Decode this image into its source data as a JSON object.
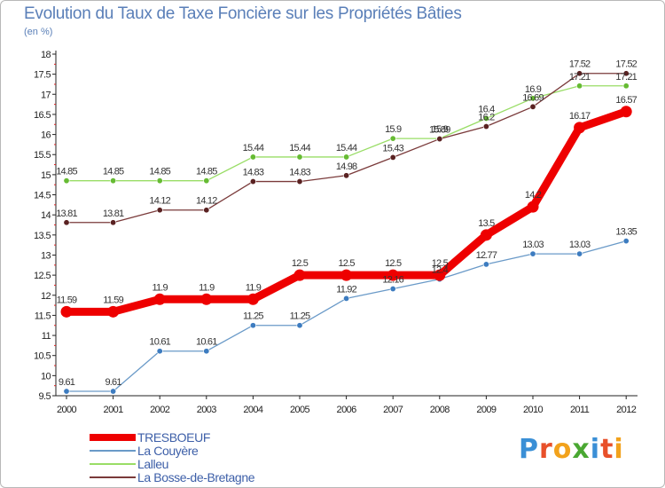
{
  "header": {
    "title": "Evolution du Taux de Taxe Foncière sur les Propriétés Bâties",
    "subtitle": "(en %)"
  },
  "brand": {
    "logo_letters": [
      "P",
      "r",
      "o",
      "x",
      "i",
      "t",
      "i"
    ],
    "logo_colors": [
      "#3a8fd6",
      "#e8502a",
      "#f2a21c",
      "#4aa832",
      "#3a8fd6",
      "#e8502a",
      "#f2a21c"
    ]
  },
  "chart_data": {
    "type": "line",
    "title": "Evolution du Taux de Taxe Foncière sur les Propriétés Bâties",
    "subtitle": "(en %)",
    "xlabel": "",
    "ylabel": "",
    "x": [
      "2000",
      "2001",
      "2002",
      "2003",
      "2004",
      "2005",
      "2006",
      "2007",
      "2008",
      "2009",
      "2010",
      "2011",
      "2012"
    ],
    "ylim": [
      9.5,
      18
    ],
    "yticks": [
      "9.5",
      "10",
      "10.5",
      "11",
      "11.5",
      "12",
      "12.5",
      "13",
      "13.5",
      "14",
      "14.5",
      "15",
      "15.5",
      "16",
      "16.5",
      "17",
      "17.5",
      "18"
    ],
    "grid": false,
    "legend": "bottom-left",
    "series": [
      {
        "name": "La Couyère",
        "color": "#6a9ac8",
        "marker_color": "#3d7cc0",
        "values": [
          9.61,
          9.61,
          10.61,
          10.61,
          11.25,
          11.25,
          11.92,
          12.16,
          12.4,
          12.77,
          13.03,
          13.03,
          13.35
        ],
        "labels": [
          "9.61",
          "9.61",
          "10.61",
          "10.61",
          "11.25",
          "11.25",
          "11.92",
          "12.16",
          "12.4",
          "12.77",
          "13.03",
          "13.03",
          "13.35"
        ]
      },
      {
        "name": "Lalleu",
        "color": "#99dd66",
        "marker_color": "#66bb33",
        "values": [
          14.85,
          14.85,
          14.85,
          14.85,
          15.44,
          15.44,
          15.44,
          15.9,
          15.9,
          16.4,
          16.9,
          17.21,
          17.21
        ],
        "labels": [
          "14.85",
          "14.85",
          "14.85",
          "14.85",
          "15.44",
          "15.44",
          "15.44",
          "15.9",
          "15.9",
          "16.4",
          "16.9",
          "17.21",
          "17.21"
        ]
      },
      {
        "name": "La Bosse-de-Bretagne",
        "color": "#7a3a3a",
        "marker_color": "#5a2222",
        "values": [
          13.81,
          13.81,
          14.12,
          14.12,
          14.83,
          14.83,
          14.98,
          15.43,
          15.89,
          16.2,
          16.69,
          17.52,
          17.52
        ],
        "labels": [
          "13.81",
          "13.81",
          "14.12",
          "14.12",
          "14.83",
          "14.83",
          "14.98",
          "15.43",
          "15.89",
          "16.2",
          "16.69",
          "17.52",
          "17.52"
        ]
      },
      {
        "name": "TRESBOEUF",
        "color": "#ee0000",
        "marker_color": "#ee0000",
        "values": [
          11.59,
          11.59,
          11.9,
          11.9,
          11.9,
          12.5,
          12.5,
          12.5,
          12.5,
          13.5,
          14.2,
          16.17,
          16.57
        ],
        "labels": [
          "11.59",
          "11.59",
          "11.9",
          "11.9",
          "11.9",
          "12.5",
          "12.5",
          "12.5",
          "12.5",
          "13.5",
          "14.2",
          "16.17",
          "16.57"
        ]
      }
    ],
    "legend_entries": [
      "TRESBOEUF",
      "La Couyère",
      "Lalleu",
      "La Bosse-de-Bretagne"
    ]
  }
}
